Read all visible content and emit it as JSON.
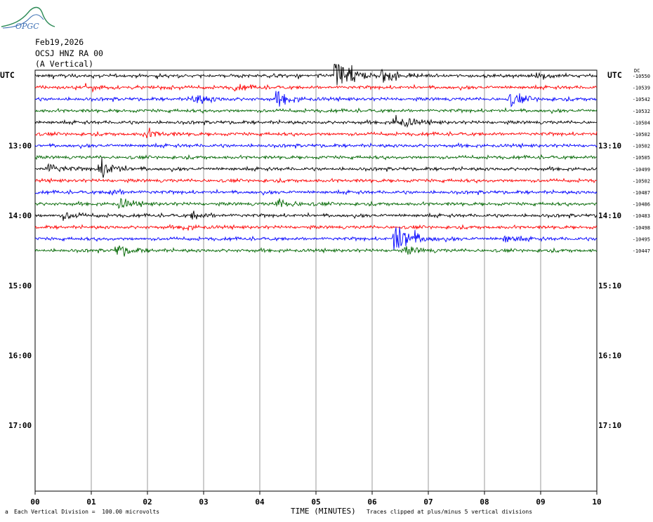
{
  "logo": {
    "text": "OPGC"
  },
  "header": {
    "date": "Feb19,2026",
    "station": "OCSJ HNZ RA 00",
    "component": "(A Vertical)"
  },
  "left_utc_label": "UTC",
  "right_utc_label": "UTC",
  "right_top_label": "DC",
  "footer": {
    "scale_note": "Each Vertical Division =  100.00 microvolts",
    "xlabel": "TIME (MINUTES)",
    "clip_note": "Traces clipped at plus/minus 5 vertical divisions",
    "corner_mark": "a"
  },
  "colors": {
    "black": "#000000",
    "red": "#ff0000",
    "blue": "#0000ff",
    "green": "#006600",
    "grid": "#808080"
  },
  "chart_data": {
    "type": "line",
    "title": "OCSJ HNZ RA 00 (A Vertical)",
    "xlabel": "TIME (MINUTES)",
    "xlim": [
      0,
      10
    ],
    "x_ticks": [
      "00",
      "01",
      "02",
      "03",
      "04",
      "05",
      "06",
      "07",
      "08",
      "09",
      "10"
    ],
    "left_hour_labels": [
      "13:00",
      "14:00",
      "15:00",
      "16:00",
      "17:00"
    ],
    "right_hour_labels": [
      "13:10",
      "14:10",
      "15:10",
      "16:10",
      "17:10"
    ],
    "grid": true,
    "trace_colors_cycle": [
      "black",
      "red",
      "blue",
      "green"
    ],
    "trace_offsets": [
      "-10550",
      "-10539",
      "-10542",
      "-10532",
      "-10504",
      "-10502",
      "-10502",
      "-10505",
      "-10499",
      "-10502",
      "-10487",
      "-10486",
      "-10483",
      "-10498",
      "-10495",
      "-10447"
    ],
    "events": [
      {
        "trace": 0,
        "minute": 5.35,
        "amplitude": 8.5
      },
      {
        "trace": 0,
        "minute": 6.15,
        "amplitude": 2.5
      },
      {
        "trace": 0,
        "minute": 8.95,
        "amplitude": 1.2
      },
      {
        "trace": 1,
        "minute": 1.0,
        "amplitude": 0.8
      },
      {
        "trace": 1,
        "minute": 3.55,
        "amplitude": 0.8
      },
      {
        "trace": 2,
        "minute": 4.3,
        "amplitude": 2.2
      },
      {
        "trace": 2,
        "minute": 2.8,
        "amplitude": 2.0
      },
      {
        "trace": 2,
        "minute": 8.45,
        "amplitude": 2.0
      },
      {
        "trace": 4,
        "minute": 6.4,
        "amplitude": 2.8
      },
      {
        "trace": 5,
        "minute": 1.95,
        "amplitude": 1.5
      },
      {
        "trace": 8,
        "minute": 0.2,
        "amplitude": 1.8
      },
      {
        "trace": 8,
        "minute": 1.15,
        "amplitude": 3.5
      },
      {
        "trace": 10,
        "minute": 1.3,
        "amplitude": 1.0
      },
      {
        "trace": 11,
        "minute": 4.3,
        "amplitude": 1.8
      },
      {
        "trace": 11,
        "minute": 1.5,
        "amplitude": 1.5
      },
      {
        "trace": 12,
        "minute": 0.5,
        "amplitude": 1.2
      },
      {
        "trace": 12,
        "minute": 2.8,
        "amplitude": 1.2
      },
      {
        "trace": 13,
        "minute": 2.6,
        "amplitude": 0.8
      },
      {
        "trace": 14,
        "minute": 6.4,
        "amplitude": 8.0
      },
      {
        "trace": 14,
        "minute": 8.35,
        "amplitude": 1.2
      },
      {
        "trace": 15,
        "minute": 1.45,
        "amplitude": 2.0
      },
      {
        "trace": 15,
        "minute": 6.6,
        "amplitude": 1.2
      }
    ]
  }
}
